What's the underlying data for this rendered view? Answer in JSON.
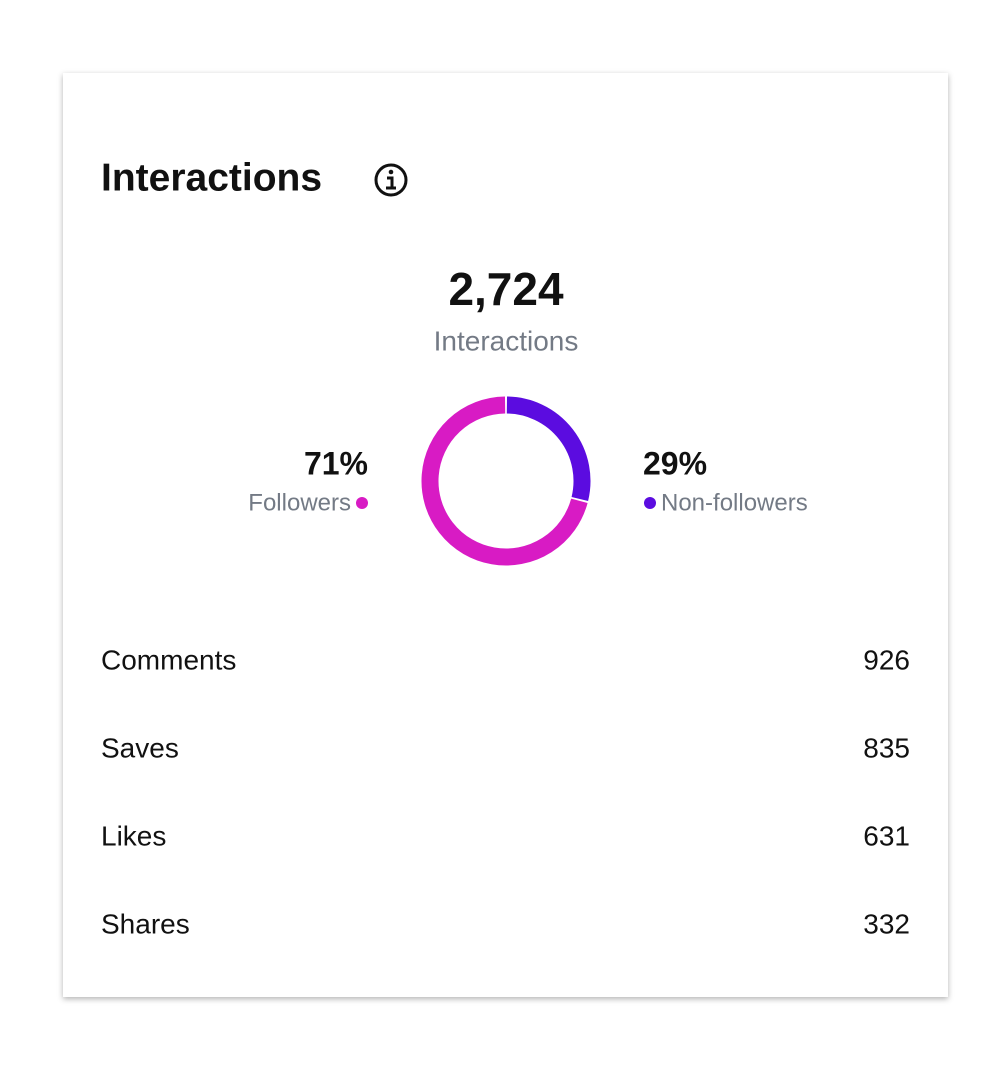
{
  "header": {
    "title": "Interactions"
  },
  "summary": {
    "value": "2,724",
    "label": "Interactions"
  },
  "chart_data": {
    "type": "donut",
    "categories": [
      "Followers",
      "Non-followers"
    ],
    "values": [
      71,
      29
    ],
    "value_labels": [
      "71%",
      "29%"
    ],
    "colors": [
      "#d81bc4",
      "#5b0ce0"
    ]
  },
  "metrics": [
    {
      "name": "Comments",
      "value": 926
    },
    {
      "name": "Saves",
      "value": 835
    },
    {
      "name": "Likes",
      "value": 631
    },
    {
      "name": "Shares",
      "value": 332
    }
  ]
}
